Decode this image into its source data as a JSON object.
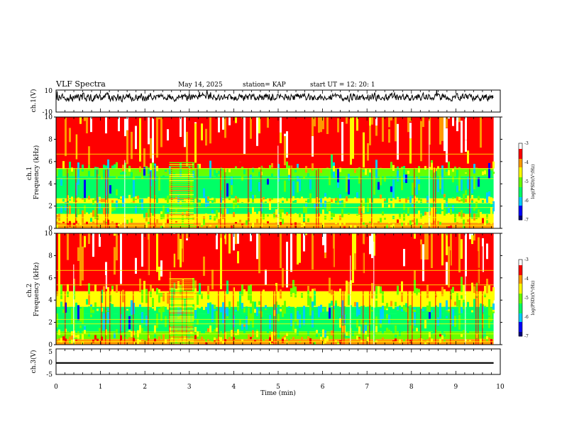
{
  "header": {
    "title": "VLF Spectra",
    "date": "May 14, 2025",
    "station": "station= KAP",
    "start": "start  UT  =   12: 20: 1"
  },
  "chart_data": [
    {
      "type": "line",
      "panel": "ch1-waveform",
      "ylabel": "ch.1(V)",
      "ylim": [
        -10,
        10
      ],
      "yticks": [
        "10",
        "-10"
      ],
      "xlim": [
        0,
        10
      ],
      "x_end": 9.85,
      "series": [
        {
          "mean": 3.5,
          "amplitude_approx": 3.0,
          "color": "#000000"
        }
      ]
    },
    {
      "type": "heatmap",
      "panel": "ch1-spectrogram",
      "ylabel": "ch.1\nFrequency  (kHz)",
      "ylim": [
        0,
        10
      ],
      "yticks": [
        "0",
        "2",
        "4",
        "6",
        "8",
        "10"
      ],
      "xlim": [
        0,
        10
      ],
      "x_end": 9.85,
      "bands_khz": [
        {
          "from": 0,
          "to": 0.5,
          "level": -4.2
        },
        {
          "from": 0.5,
          "to": 1.3,
          "level": -4.6
        },
        {
          "from": 1.3,
          "to": 2.3,
          "level": -5.4
        },
        {
          "from": 2.3,
          "to": 2.7,
          "level": -4.7
        },
        {
          "from": 2.7,
          "to": 4.7,
          "level": -5.6
        },
        {
          "from": 4.7,
          "to": 5.4,
          "level": -4.9
        },
        {
          "from": 5.4,
          "to": 10,
          "level": -3.7
        }
      ],
      "event_min": [
        2.55,
        3.1
      ],
      "colorbar": {
        "label": "log(PSD)(V²/Hz)",
        "range": [
          -7,
          -3
        ],
        "ticks": [
          "-3",
          "-4",
          "-5",
          "-6",
          "-7"
        ]
      }
    },
    {
      "type": "heatmap",
      "panel": "ch2-spectrogram",
      "ylabel": "ch.2\nFrequency  (kHz)",
      "ylim": [
        0,
        10
      ],
      "yticks": [
        "0",
        "2",
        "4",
        "6",
        "8",
        "10"
      ],
      "xlim": [
        0,
        10
      ],
      "x_end": 9.85,
      "bands_khz": [
        {
          "from": 0,
          "to": 0.5,
          "level": -4.2
        },
        {
          "from": 0.5,
          "to": 1.2,
          "level": -5.0
        },
        {
          "from": 1.2,
          "to": 2.8,
          "level": -5.5
        },
        {
          "from": 2.8,
          "to": 3.4,
          "level": -5.3
        },
        {
          "from": 3.4,
          "to": 4.8,
          "level": -4.6
        },
        {
          "from": 4.8,
          "to": 10,
          "level": -3.7
        }
      ],
      "event_min": [
        2.55,
        3.1
      ],
      "colorbar": {
        "label": "log(PSD)(V²/Hz)",
        "range": [
          -7,
          -3
        ],
        "ticks": [
          "-3",
          "-4",
          "-5",
          "-6",
          "-7"
        ]
      }
    },
    {
      "type": "line",
      "panel": "ch3-waveform",
      "ylabel": "ch.3(V)",
      "ylim": [
        -5,
        5
      ],
      "yticks": [
        "5",
        "0",
        "-5"
      ],
      "xlim": [
        0,
        10
      ],
      "x_end": 9.85,
      "series": [
        {
          "mean": -0.5,
          "amplitude_approx": 0.6,
          "color": "#000000"
        }
      ]
    }
  ],
  "xaxis": {
    "label": "Time  (min)",
    "ticks": [
      "0",
      "1",
      "2",
      "3",
      "4",
      "5",
      "6",
      "7",
      "8",
      "9",
      "10"
    ]
  },
  "colormap": [
    "#00007a",
    "#0000ff",
    "#00ccff",
    "#00ff66",
    "#66ff00",
    "#ffff00",
    "#ff9900",
    "#ff0000",
    "#ffffff"
  ]
}
